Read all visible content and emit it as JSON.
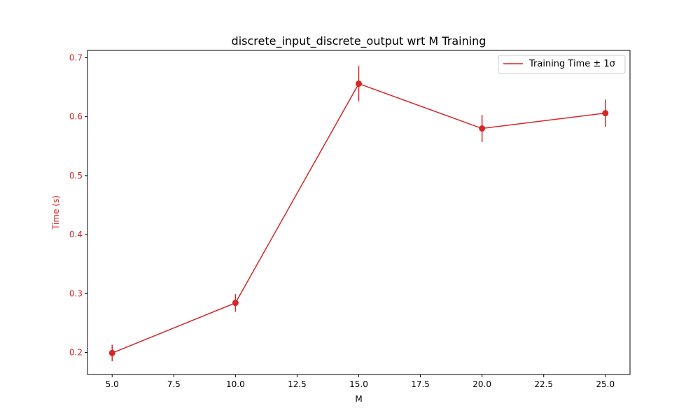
{
  "chart_data": {
    "type": "line",
    "title": "discrete_input_discrete_output wrt M Training",
    "xlabel": "M",
    "ylabel": "Time (s)",
    "xlim": [
      4.0,
      26.0
    ],
    "ylim": [
      0.1625,
      0.7125
    ],
    "x_ticks": [
      5.0,
      7.5,
      10.0,
      12.5,
      15.0,
      17.5,
      20.0,
      22.5,
      25.0
    ],
    "x_tick_labels": [
      "5.0",
      "7.5",
      "10.0",
      "12.5",
      "15.0",
      "17.5",
      "20.0",
      "22.5",
      "25.0"
    ],
    "y_ticks": [
      0.2,
      0.3,
      0.4,
      0.5,
      0.6,
      0.7
    ],
    "y_tick_labels": [
      "0.2",
      "0.3",
      "0.4",
      "0.5",
      "0.6",
      "0.7"
    ],
    "grid": false,
    "legend_position": "top-right",
    "series": [
      {
        "name": "Training Time ± 1σ",
        "color": "#d62728",
        "x": [
          5,
          10,
          15,
          20,
          25
        ],
        "y": [
          0.199,
          0.284,
          0.656,
          0.58,
          0.606
        ],
        "err": [
          0.014,
          0.015,
          0.03,
          0.023,
          0.023
        ]
      }
    ]
  }
}
